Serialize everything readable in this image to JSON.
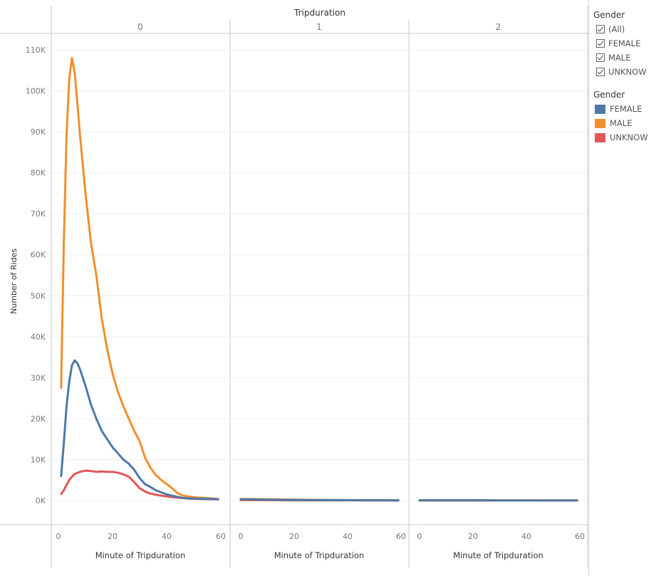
{
  "header": {
    "column_field": "Tripduration",
    "panels": [
      "0",
      "1",
      "2"
    ]
  },
  "y_axis": {
    "label": "Number of Rides",
    "ticks": [
      "0K",
      "10K",
      "20K",
      "30K",
      "40K",
      "50K",
      "60K",
      "70K",
      "80K",
      "90K",
      "100K",
      "110K"
    ]
  },
  "x_axis": {
    "label": "Minute of Tripduration",
    "ticks": [
      "0",
      "20",
      "40",
      "60"
    ]
  },
  "filter_legend": {
    "title": "Gender",
    "items": [
      {
        "label": "(All)",
        "checked": true
      },
      {
        "label": "FEMALE",
        "checked": true
      },
      {
        "label": "MALE",
        "checked": true
      },
      {
        "label": "UNKNOW",
        "checked": true
      }
    ]
  },
  "color_legend": {
    "title": "Gender",
    "items": [
      {
        "label": "FEMALE",
        "color": "#4e79a7"
      },
      {
        "label": "MALE",
        "color": "#f28e2b"
      },
      {
        "label": "UNKNOW",
        "color": "#e15759"
      }
    ]
  },
  "chart_data": {
    "type": "line",
    "title": "",
    "facet_field": "Tripduration",
    "facets": [
      "0",
      "1",
      "2"
    ],
    "xlabel": "Minute of Tripduration",
    "ylabel": "Number of Rides",
    "xlim": [
      0,
      60
    ],
    "ylim": [
      0,
      110000
    ],
    "grid": true,
    "legend_position": "right",
    "series": [
      {
        "name": "MALE",
        "color": "#f28e2b",
        "facet": "0",
        "x": [
          1,
          2,
          3,
          4,
          5,
          6,
          7,
          8,
          9,
          10,
          12,
          14,
          16,
          18,
          20,
          22,
          24,
          26,
          28,
          30,
          32,
          34,
          36,
          38,
          40,
          42,
          44,
          46,
          50,
          55,
          59
        ],
        "y": [
          27500,
          63000,
          89000,
          103000,
          108000,
          104500,
          97000,
          89000,
          82000,
          75000,
          63000,
          55000,
          44500,
          37000,
          31000,
          26500,
          23000,
          20000,
          17000,
          14500,
          10500,
          8000,
          6200,
          5000,
          4000,
          3000,
          1800,
          1200,
          800,
          600,
          400
        ]
      },
      {
        "name": "FEMALE",
        "color": "#4e79a7",
        "facet": "0",
        "x": [
          1,
          2,
          3,
          4,
          5,
          6,
          7,
          8,
          10,
          12,
          14,
          16,
          18,
          20,
          22,
          24,
          26,
          28,
          30,
          32,
          34,
          36,
          38,
          40,
          42,
          44,
          46,
          50,
          55,
          59
        ],
        "y": [
          6000,
          14000,
          23000,
          29000,
          33000,
          34200,
          33500,
          32000,
          28000,
          23500,
          20000,
          17000,
          15000,
          13000,
          11500,
          10000,
          9000,
          7500,
          5500,
          4000,
          3300,
          2500,
          2000,
          1500,
          1200,
          900,
          600,
          500,
          400,
          300
        ]
      },
      {
        "name": "UNKNOW",
        "color": "#e15759",
        "facet": "0",
        "x": [
          1,
          2,
          3,
          4,
          5,
          6,
          8,
          10,
          12,
          14,
          16,
          18,
          20,
          22,
          24,
          26,
          28,
          30,
          32,
          34,
          36,
          38,
          40,
          44,
          50,
          55,
          59
        ],
        "y": [
          1600,
          2500,
          3800,
          5000,
          5800,
          6500,
          7000,
          7300,
          7200,
          7000,
          7100,
          7000,
          7000,
          6800,
          6400,
          5800,
          4500,
          3000,
          2200,
          1700,
          1400,
          1200,
          1000,
          700,
          400,
          350,
          300
        ]
      },
      {
        "name": "MALE",
        "color": "#f28e2b",
        "facet": "1",
        "x": [
          0,
          10,
          20,
          30,
          40,
          50,
          59
        ],
        "y": [
          400,
          300,
          200,
          150,
          100,
          80,
          60
        ]
      },
      {
        "name": "FEMALE",
        "color": "#4e79a7",
        "facet": "1",
        "x": [
          0,
          10,
          20,
          30,
          40,
          50,
          59
        ],
        "y": [
          300,
          200,
          150,
          100,
          80,
          60,
          40
        ]
      },
      {
        "name": "UNKNOW",
        "color": "#e15759",
        "facet": "1",
        "x": [
          0,
          10,
          20,
          30,
          40,
          50,
          59
        ],
        "y": [
          100,
          80,
          60,
          50,
          40,
          30,
          20
        ]
      },
      {
        "name": "MALE",
        "color": "#f28e2b",
        "facet": "2",
        "x": [
          0,
          10,
          20,
          30,
          40,
          50,
          59
        ],
        "y": [
          60,
          50,
          40,
          30,
          30,
          20,
          20
        ]
      },
      {
        "name": "FEMALE",
        "color": "#4e79a7",
        "facet": "2",
        "x": [
          0,
          10,
          20,
          30,
          40,
          50,
          59
        ],
        "y": [
          40,
          30,
          30,
          20,
          20,
          20,
          10
        ]
      },
      {
        "name": "UNKNOW",
        "color": "#e15759",
        "facet": "2",
        "x": [
          0,
          10,
          20,
          30,
          40,
          50,
          59
        ],
        "y": [
          10,
          10,
          10,
          10,
          10,
          10,
          10
        ]
      }
    ]
  }
}
